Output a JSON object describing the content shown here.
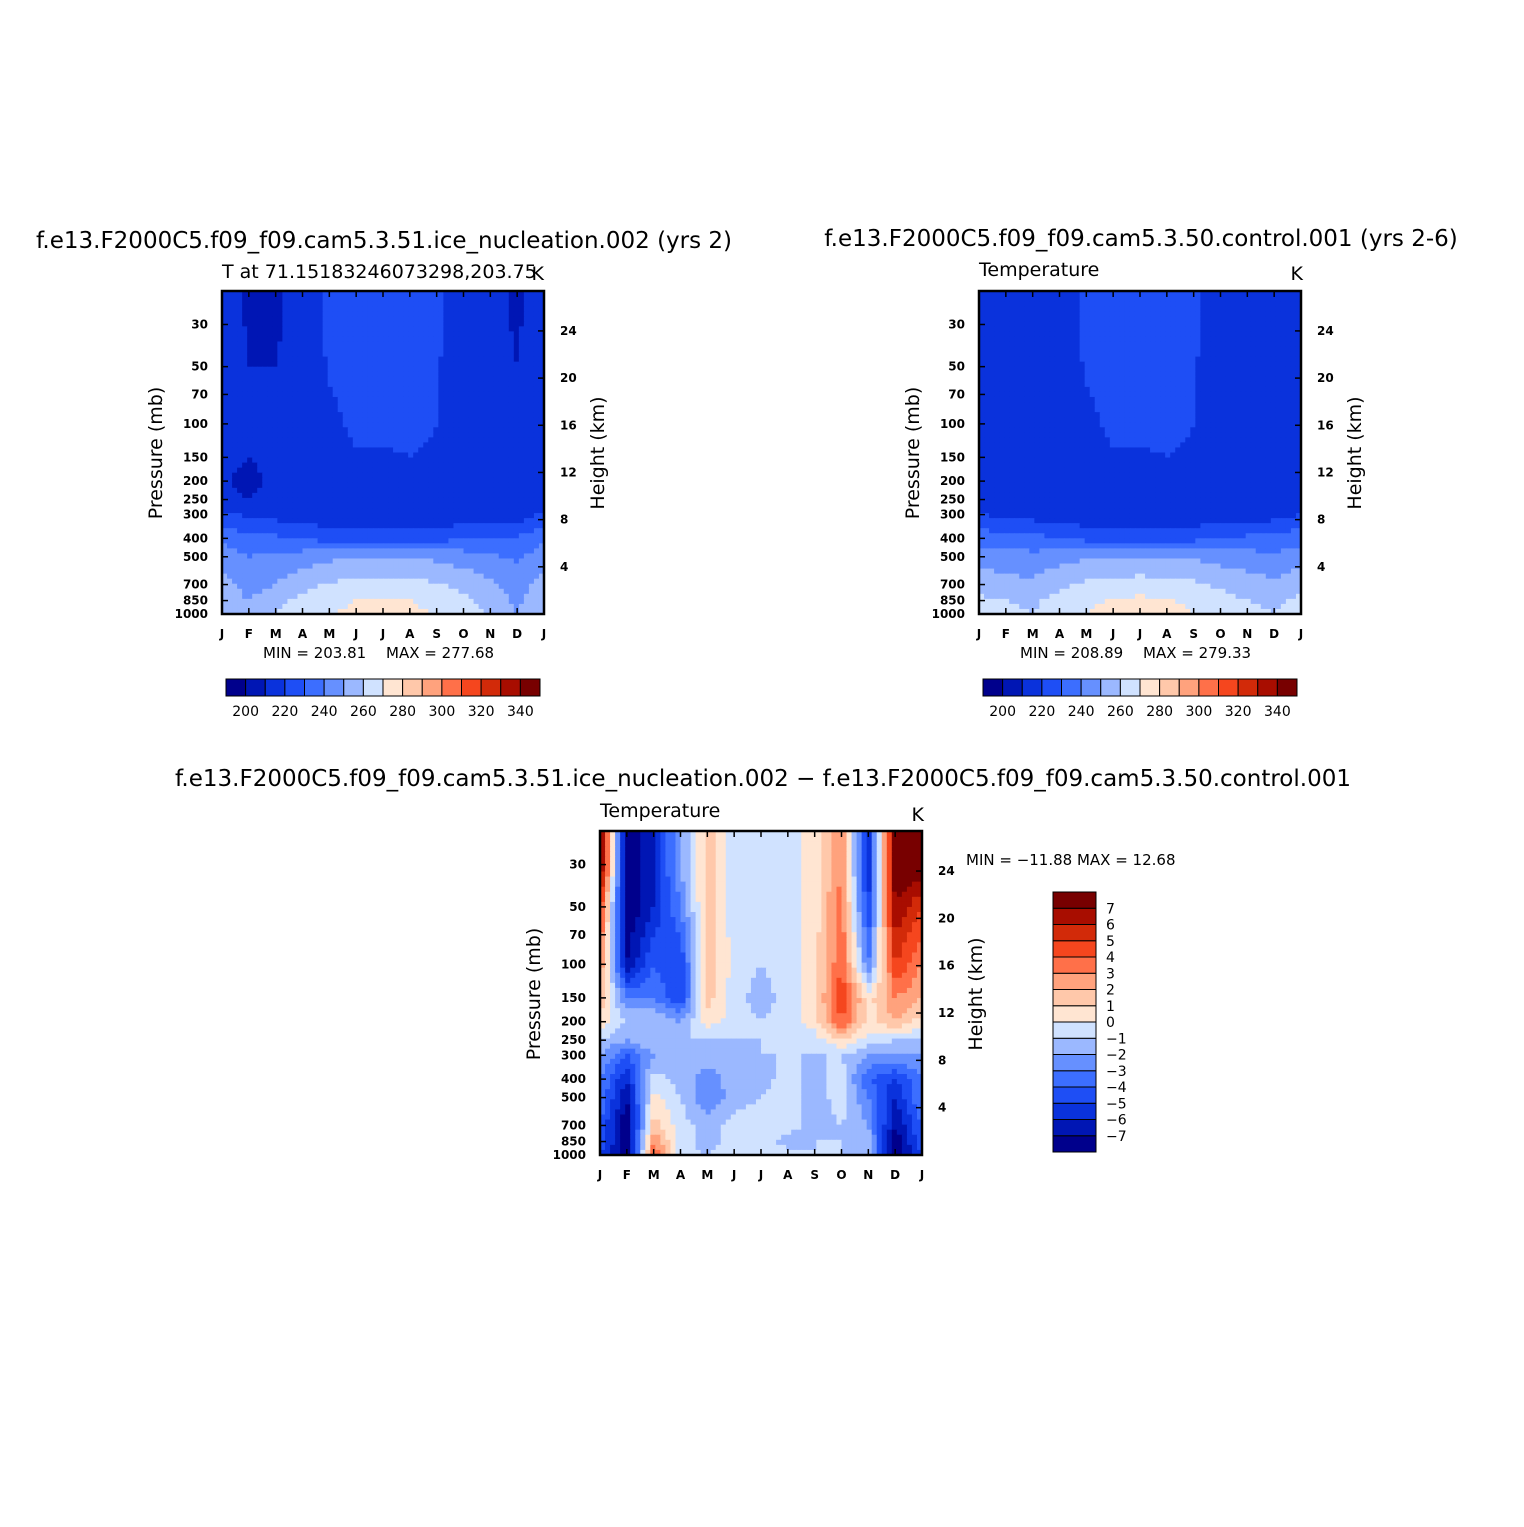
{
  "chart_data": [
    {
      "id": "panel1",
      "type": "heatmap",
      "title": "f.e13.F2000C5.f09_f09.cam5.3.51.ice_nucleation.002 (yrs 2)",
      "subtitle_left": "T at 71.15183246073298,203.75",
      "units": "K",
      "ylabel": "Pressure (mb)",
      "ylabel_right": "Height (km)",
      "yscale": "log",
      "ylim": [
        1000,
        20
      ],
      "x_ticks": [
        "J",
        "F",
        "M",
        "A",
        "M",
        "J",
        "J",
        "A",
        "S",
        "O",
        "N",
        "D",
        "J"
      ],
      "y_ticks": [
        30,
        50,
        70,
        100,
        150,
        200,
        250,
        300,
        400,
        500,
        700,
        850,
        1000
      ],
      "y_ticks_right": [
        24,
        20,
        16,
        12,
        8,
        4
      ],
      "min": 203.81,
      "max": 277.68,
      "min_label": "MIN = 203.81",
      "max_label": "MAX = 277.68",
      "levels": [
        200,
        210,
        220,
        230,
        240,
        250,
        260,
        270,
        280,
        290,
        300,
        310,
        320,
        330,
        340
      ],
      "colorbar_labels": [
        "200",
        "220",
        "240",
        "260",
        "280",
        "300",
        "320",
        "340"
      ],
      "colorbar_orientation": "horizontal",
      "months": [
        "J",
        "F",
        "M",
        "A",
        "M",
        "J",
        "J",
        "A",
        "S",
        "O",
        "N",
        "D",
        "J"
      ],
      "pressure": [
        20,
        30,
        50,
        100,
        150,
        200,
        250,
        300,
        400,
        500,
        700,
        850,
        1000
      ],
      "values": [
        [
          215,
          209,
          209,
          213,
          222,
          222,
          222,
          222,
          222,
          213,
          213,
          209,
          215
        ],
        [
          215,
          209,
          209,
          213,
          222,
          222,
          222,
          222,
          222,
          213,
          213,
          209,
          215
        ],
        [
          214,
          210,
          210,
          213,
          221,
          222,
          222,
          222,
          221,
          213,
          213,
          210,
          214
        ],
        [
          213,
          210,
          211,
          213,
          218,
          222,
          222,
          222,
          220,
          213,
          213,
          212,
          213
        ],
        [
          212,
          210,
          212,
          213,
          216,
          219,
          219,
          220,
          219,
          213,
          213,
          212,
          212
        ],
        [
          211,
          208,
          212,
          213,
          214,
          215,
          213,
          215,
          215,
          213,
          213,
          212,
          211
        ],
        [
          211,
          210,
          212,
          213,
          213,
          213,
          212,
          213,
          213,
          213,
          213,
          212,
          211
        ],
        [
          222,
          218,
          216,
          214,
          213,
          213,
          213,
          213,
          213,
          213,
          213,
          214,
          222
        ],
        [
          238,
          233,
          232,
          229,
          226,
          225,
          225,
          225,
          226,
          229,
          230,
          232,
          238
        ],
        [
          245,
          240,
          242,
          245,
          248,
          248,
          248,
          248,
          248,
          245,
          242,
          238,
          245
        ],
        [
          254,
          245,
          250,
          257,
          261,
          263,
          264,
          263,
          261,
          257,
          252,
          246,
          254
        ],
        [
          258,
          250,
          257,
          263,
          267,
          270,
          271,
          270,
          267,
          263,
          256,
          248,
          258
        ],
        [
          260,
          252,
          260,
          265,
          269,
          273,
          275,
          273,
          269,
          265,
          258,
          249,
          260
        ]
      ]
    },
    {
      "id": "panel2",
      "type": "heatmap",
      "title": "f.e13.F2000C5.f09_f09.cam5.3.50.control.001 (yrs 2-6)",
      "subtitle_left": "Temperature",
      "units": "K",
      "ylabel": "Pressure (mb)",
      "ylabel_right": "Height (km)",
      "yscale": "log",
      "ylim": [
        1000,
        20
      ],
      "x_ticks": [
        "J",
        "F",
        "M",
        "A",
        "M",
        "J",
        "J",
        "A",
        "S",
        "O",
        "N",
        "D",
        "J"
      ],
      "y_ticks": [
        30,
        50,
        70,
        100,
        150,
        200,
        250,
        300,
        400,
        500,
        700,
        850,
        1000
      ],
      "y_ticks_right": [
        24,
        20,
        16,
        12,
        8,
        4
      ],
      "min": 208.89,
      "max": 279.33,
      "min_label": "MIN = 208.89",
      "max_label": "MAX = 279.33",
      "levels": [
        200,
        210,
        220,
        230,
        240,
        250,
        260,
        270,
        280,
        290,
        300,
        310,
        320,
        330,
        340
      ],
      "colorbar_labels": [
        "200",
        "220",
        "240",
        "260",
        "280",
        "300",
        "320",
        "340"
      ],
      "colorbar_orientation": "horizontal",
      "months": [
        "J",
        "F",
        "M",
        "A",
        "M",
        "J",
        "J",
        "A",
        "S",
        "O",
        "N",
        "D",
        "J"
      ],
      "pressure": [
        20,
        30,
        50,
        100,
        150,
        200,
        250,
        300,
        400,
        500,
        700,
        850,
        1000
      ],
      "values": [
        [
          213,
          213,
          213,
          214,
          222,
          222,
          222,
          222,
          222,
          213,
          213,
          213,
          213
        ],
        [
          213,
          213,
          213,
          214,
          222,
          222,
          222,
          222,
          222,
          213,
          213,
          213,
          213
        ],
        [
          213,
          213,
          213,
          214,
          221,
          222,
          222,
          222,
          221,
          213,
          213,
          213,
          213
        ],
        [
          213,
          213,
          213,
          214,
          218,
          222,
          222,
          222,
          220,
          213,
          213,
          213,
          213
        ],
        [
          213,
          213,
          213,
          214,
          216,
          219,
          219,
          220,
          219,
          213,
          213,
          213,
          213
        ],
        [
          213,
          213,
          213,
          214,
          214,
          215,
          213,
          215,
          215,
          213,
          213,
          210,
          210
        ],
        [
          213,
          213,
          213,
          213,
          213,
          213,
          212,
          213,
          213,
          213,
          213,
          212,
          213
        ],
        [
          220,
          218,
          216,
          214,
          213,
          213,
          213,
          213,
          213,
          213,
          213,
          216,
          220
        ],
        [
          236,
          234,
          233,
          230,
          227,
          226,
          226,
          226,
          227,
          230,
          232,
          234,
          236
        ],
        [
          246,
          244,
          243,
          246,
          249,
          249,
          249,
          249,
          249,
          246,
          244,
          242,
          246
        ],
        [
          256,
          254,
          252,
          258,
          262,
          264,
          265,
          264,
          262,
          258,
          255,
          252,
          256
        ],
        [
          262,
          260,
          258,
          264,
          268,
          271,
          272,
          271,
          268,
          264,
          260,
          258,
          262
        ],
        [
          264,
          262,
          260,
          266,
          270,
          274,
          276,
          274,
          270,
          266,
          262,
          260,
          264
        ]
      ]
    },
    {
      "id": "panel3",
      "type": "heatmap",
      "title": "f.e13.F2000C5.f09_f09.cam5.3.51.ice_nucleation.002 − f.e13.F2000C5.f09_f09.cam5.3.50.control.001",
      "subtitle_left": "Temperature",
      "units": "K",
      "ylabel": "Pressure (mb)",
      "ylabel_right": "Height (km)",
      "yscale": "log",
      "ylim": [
        1000,
        20
      ],
      "x_ticks": [
        "J",
        "F",
        "M",
        "A",
        "M",
        "J",
        "J",
        "A",
        "S",
        "O",
        "N",
        "D",
        "J"
      ],
      "y_ticks": [
        30,
        50,
        70,
        100,
        150,
        200,
        250,
        300,
        400,
        500,
        700,
        850,
        1000
      ],
      "y_ticks_right": [
        24,
        20,
        16,
        12,
        8,
        4
      ],
      "min": -11.88,
      "max": 12.68,
      "minmax_label": "MIN = −11.88 MAX = 12.68",
      "levels": [
        -7,
        -6,
        -5,
        -4,
        -3,
        -2,
        -1,
        0,
        1,
        2,
        3,
        4,
        5,
        6,
        7
      ],
      "colorbar_labels": [
        "7",
        "6",
        "5",
        "4",
        "3",
        "2",
        "1",
        "0",
        "−1",
        "−2",
        "−3",
        "−4",
        "−5",
        "−6",
        "−7"
      ],
      "colorbar_orientation": "vertical",
      "months": [
        "J",
        "F",
        "M",
        "A",
        "M",
        "J",
        "J",
        "A",
        "S",
        "O",
        "N",
        "D",
        "J"
      ],
      "pressure": [
        20,
        30,
        50,
        100,
        150,
        200,
        250,
        300,
        400,
        500,
        700,
        850,
        1000
      ],
      "values": [
        [
          8,
          -8,
          -6,
          -2,
          1.5,
          -0.5,
          -0.5,
          -0.5,
          0.5,
          3,
          -6,
          8,
          8
        ],
        [
          8,
          -8,
          -6,
          -2,
          1.5,
          -0.5,
          -0.5,
          -0.5,
          0.5,
          3,
          -6,
          8,
          8
        ],
        [
          5,
          -8,
          -6,
          -3,
          1.5,
          -0.5,
          -0.5,
          -0.5,
          0.5,
          3.5,
          -5,
          7,
          5
        ],
        [
          3,
          -7,
          -4,
          -5,
          2,
          -0.5,
          -1,
          -0.5,
          0.5,
          4,
          -3,
          5,
          3
        ],
        [
          2,
          -3,
          -3,
          -5,
          1.5,
          -0.5,
          -1.5,
          -0.5,
          0.5,
          5,
          0.5,
          3,
          2
        ],
        [
          0.5,
          -1,
          -1,
          -2,
          0.5,
          -0.5,
          -1,
          -0.5,
          0.5,
          4,
          0.5,
          2,
          0.5
        ],
        [
          -1,
          -2,
          -1,
          -1,
          -1,
          -1,
          -1,
          -0.5,
          -0.5,
          1,
          -0.5,
          -1,
          -1
        ],
        [
          -2,
          -4,
          -2,
          -1.5,
          -1.5,
          -1.5,
          -1,
          -1,
          -1,
          -1,
          -2,
          -2,
          -2
        ],
        [
          -3,
          -6,
          -0.5,
          -1.5,
          -2.5,
          -1.5,
          -1.5,
          -0.5,
          -1.5,
          -0.5,
          -4,
          -5,
          -3
        ],
        [
          -3,
          -7,
          0.5,
          -1,
          -3,
          -1.5,
          -1,
          -0.5,
          -1.5,
          -0.5,
          -3,
          -6,
          -3
        ],
        [
          -4,
          -8,
          1.5,
          -0.5,
          -1.5,
          -0.5,
          -0.5,
          -0.5,
          -1.5,
          -1,
          -2,
          -7,
          -4
        ],
        [
          -4,
          -8,
          3,
          -0.5,
          -1.5,
          -0.5,
          -0.5,
          -1.5,
          -1,
          -1,
          -1.5,
          -8,
          -4
        ],
        [
          -5,
          -8,
          4,
          -0.5,
          -1,
          -0.5,
          -0.5,
          -0.5,
          -1,
          -1,
          -1.5,
          -8,
          -5
        ]
      ]
    }
  ]
}
